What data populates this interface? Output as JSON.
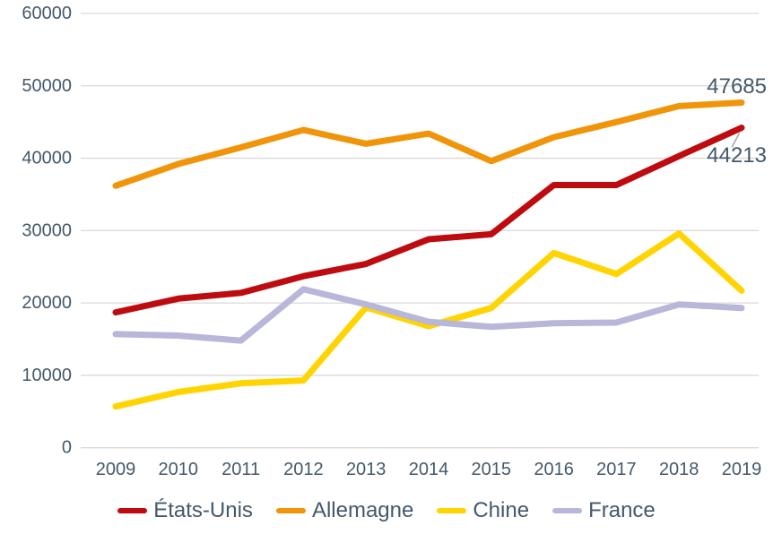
{
  "chart_data": {
    "type": "line",
    "title": "",
    "xlabel": "",
    "ylabel": "",
    "categories": [
      "2009",
      "2010",
      "2011",
      "2012",
      "2013",
      "2014",
      "2015",
      "2016",
      "2017",
      "2018",
      "2019"
    ],
    "series": [
      {
        "name": "États-Unis",
        "color": "#be0b10",
        "values": [
          18700,
          20600,
          21400,
          23700,
          25400,
          28800,
          29500,
          36300,
          36300,
          40300,
          44213
        ]
      },
      {
        "name": "Allemagne",
        "color": "#f0940a",
        "values": [
          36200,
          39200,
          41500,
          43900,
          42000,
          43400,
          39600,
          42900,
          45000,
          47200,
          47685
        ]
      },
      {
        "name": "Chine",
        "color": "#ffd400",
        "values": [
          5700,
          7700,
          8900,
          9300,
          19400,
          16800,
          19300,
          26900,
          24000,
          29600,
          21700
        ]
      },
      {
        "name": "France",
        "color": "#b8b6d9",
        "values": [
          15700,
          15500,
          14800,
          21900,
          19800,
          17400,
          16700,
          17200,
          17300,
          19800,
          19300
        ]
      }
    ],
    "ylim": [
      0,
      60000
    ],
    "ytick_step": 10000,
    "y_tick_labels": [
      "0",
      "10000",
      "20000",
      "30000",
      "40000",
      "50000",
      "60000"
    ],
    "grid": "horizontal",
    "legend_position": "bottom",
    "annotations": [
      {
        "series": "Allemagne",
        "category": "2019",
        "text": "47685"
      },
      {
        "series": "États-Unis",
        "category": "2019",
        "text": "44213",
        "leader_line": true
      }
    ]
  },
  "colors": {
    "background": "#ffffff",
    "gridline": "#d9d9d9",
    "axis_text": "#44596b",
    "data_label_text": "#44596b",
    "leader_line": "#a6a6a6"
  },
  "legend": {
    "items": [
      {
        "label": "États-Unis",
        "color": "#be0b10"
      },
      {
        "label": "Allemagne",
        "color": "#f0940a"
      },
      {
        "label": "Chine",
        "color": "#ffd400"
      },
      {
        "label": "France",
        "color": "#b8b6d9"
      }
    ]
  }
}
